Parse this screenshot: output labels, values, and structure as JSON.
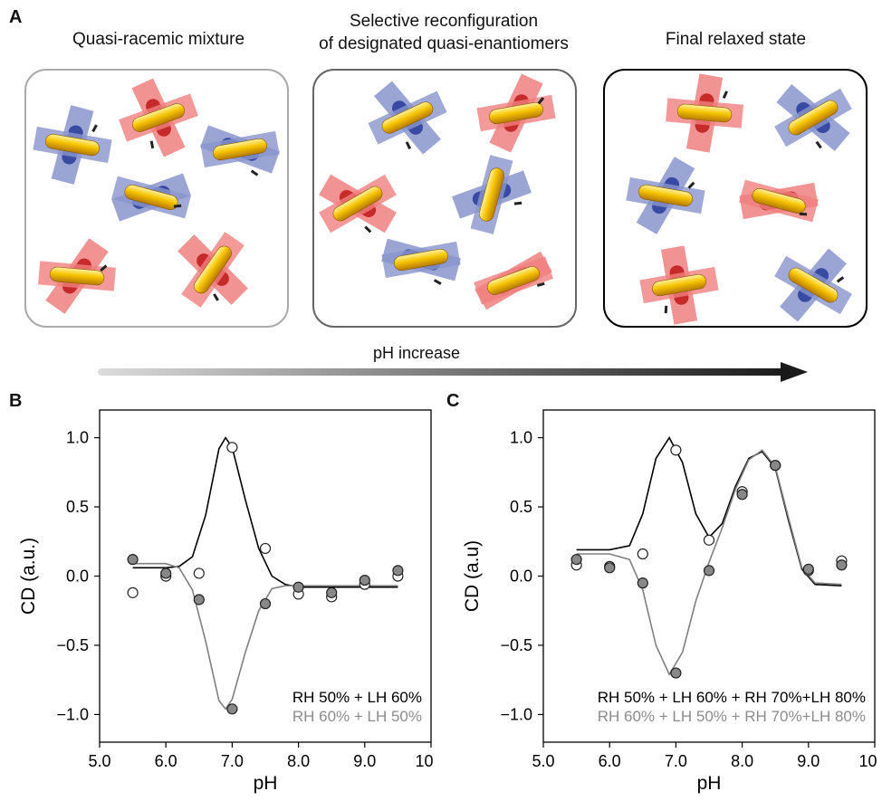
{
  "panel_a": {
    "letter": "A",
    "titles": [
      "Quasi-racemic mixture",
      "Selective reconfiguration",
      "of designated quasi-enantiomers",
      "Final relaxed state"
    ],
    "arrow_label": "pH increase",
    "colors": {
      "rod": "#f2b800",
      "red_plate": "#f08080",
      "blue_plate": "#8a95cc"
    }
  },
  "chart_data": [
    {
      "panel": "B",
      "type": "line",
      "xlabel": "pH",
      "ylabel": "CD (a.u.)",
      "xlim": [
        5.0,
        10.0
      ],
      "ylim": [
        -1.2,
        1.2
      ],
      "xticks": [
        "5.0",
        "6.0",
        "7.0",
        "8.0",
        "9.0",
        "10.0"
      ],
      "yticks": [
        "1.0",
        "0.5",
        "0.0",
        "−0.5",
        "−1.0"
      ],
      "legend": [
        "RH 50% + LH 60%",
        "RH 60% + LH 50%"
      ],
      "series": [
        {
          "name": "RH 50% + LH 60%",
          "color": "#000000",
          "marker": "open",
          "x": [
            5.5,
            6.0,
            6.5,
            7.0,
            7.5,
            8.0,
            8.5,
            9.0,
            9.5
          ],
          "y": [
            -0.12,
            0.0,
            0.02,
            0.93,
            0.2,
            -0.13,
            -0.15,
            -0.06,
            0.0
          ],
          "fit_x": [
            5.5,
            6.0,
            6.2,
            6.4,
            6.6,
            6.8,
            6.9,
            7.0,
            7.2,
            7.4,
            7.6,
            7.8,
            8.0,
            8.5,
            9.0,
            9.5
          ],
          "fit_y": [
            0.06,
            0.06,
            0.07,
            0.14,
            0.44,
            0.92,
            1.0,
            0.93,
            0.55,
            0.2,
            0.0,
            -0.06,
            -0.08,
            -0.08,
            -0.08,
            -0.08
          ]
        },
        {
          "name": "RH 60% + LH 50%",
          "color": "#808080",
          "marker": "filled",
          "x": [
            5.5,
            6.0,
            6.5,
            7.0,
            7.5,
            8.0,
            8.5,
            9.0,
            9.5
          ],
          "y": [
            0.12,
            0.02,
            -0.17,
            -0.96,
            -0.2,
            -0.08,
            -0.12,
            -0.03,
            0.04
          ],
          "fit_x": [
            5.5,
            6.0,
            6.2,
            6.4,
            6.6,
            6.8,
            6.9,
            7.0,
            7.2,
            7.4,
            7.6,
            7.8,
            8.0,
            8.5,
            9.0,
            9.5
          ],
          "fit_y": [
            0.09,
            0.09,
            0.06,
            -0.1,
            -0.47,
            -0.9,
            -0.96,
            -0.89,
            -0.55,
            -0.25,
            -0.09,
            -0.07,
            -0.07,
            -0.07,
            -0.07,
            -0.07
          ]
        }
      ]
    },
    {
      "panel": "C",
      "type": "line",
      "xlabel": "pH",
      "ylabel": "CD (a.u)",
      "xlim": [
        5.0,
        10.0
      ],
      "ylim": [
        -1.2,
        1.2
      ],
      "xticks": [
        "5.0",
        "6.0",
        "7.0",
        "8.0",
        "9.0",
        "10.0"
      ],
      "yticks": [
        "1.0",
        "0.5",
        "0.0",
        "−0.5",
        "−1.0"
      ],
      "legend": [
        "RH 50% + LH 60% + RH 70%+LH 80%",
        "RH 60% + LH 50% + RH 70%+LH 80%"
      ],
      "series": [
        {
          "name": "RH 50% + LH 60% + RH 70%+LH 80%",
          "color": "#000000",
          "marker": "open",
          "x": [
            5.5,
            6.0,
            6.5,
            7.0,
            7.5,
            8.0,
            8.5,
            9.0,
            9.5
          ],
          "y": [
            0.08,
            0.07,
            0.16,
            0.91,
            0.26,
            0.61,
            0.8,
            0.04,
            0.11
          ],
          "fit_x": [
            5.5,
            6.0,
            6.3,
            6.5,
            6.7,
            6.9,
            7.1,
            7.3,
            7.5,
            7.7,
            7.9,
            8.1,
            8.3,
            8.5,
            8.7,
            8.9,
            9.1,
            9.5
          ],
          "fit_y": [
            0.19,
            0.19,
            0.22,
            0.45,
            0.85,
            1.0,
            0.82,
            0.45,
            0.28,
            0.38,
            0.65,
            0.85,
            0.9,
            0.78,
            0.4,
            0.05,
            -0.06,
            -0.07
          ]
        },
        {
          "name": "RH 60% + LH 50% + RH 70%+LH 80%",
          "color": "#808080",
          "marker": "filled",
          "x": [
            5.5,
            6.0,
            6.5,
            7.0,
            7.5,
            8.0,
            8.5,
            9.0,
            9.5
          ],
          "y": [
            0.12,
            0.06,
            -0.05,
            -0.7,
            0.04,
            0.59,
            0.8,
            0.05,
            0.08
          ],
          "fit_x": [
            5.5,
            6.0,
            6.3,
            6.5,
            6.7,
            6.9,
            7.1,
            7.3,
            7.5,
            7.7,
            7.9,
            8.1,
            8.3,
            8.5,
            8.7,
            8.9,
            9.1,
            9.5
          ],
          "fit_y": [
            0.16,
            0.16,
            0.12,
            -0.1,
            -0.5,
            -0.71,
            -0.55,
            -0.18,
            0.1,
            0.35,
            0.63,
            0.84,
            0.91,
            0.79,
            0.42,
            0.06,
            -0.05,
            -0.06
          ]
        }
      ]
    }
  ]
}
